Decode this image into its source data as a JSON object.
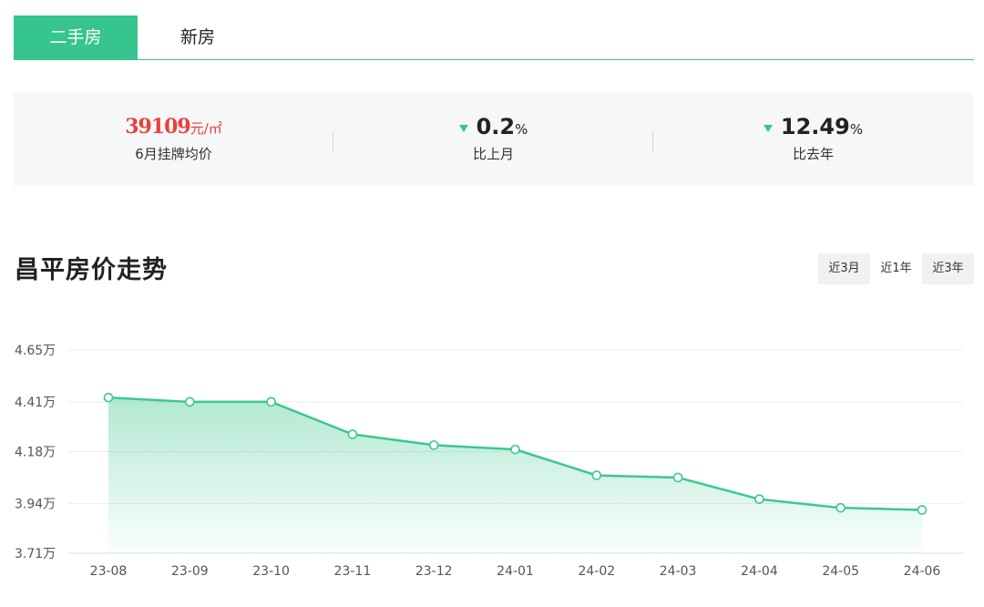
{
  "tabs": [
    {
      "label": "二手房",
      "active": true
    },
    {
      "label": "新房",
      "active": false
    }
  ],
  "stats": {
    "price": {
      "value": "39109",
      "unit": "元/㎡",
      "label": "6月挂牌均价"
    },
    "mom": {
      "value": "0.2",
      "unit": "%",
      "direction": "down",
      "label": "比上月"
    },
    "yoy": {
      "value": "12.49",
      "unit": "%",
      "direction": "down",
      "label": "比去年"
    }
  },
  "section": {
    "title": "昌平房价走势"
  },
  "range_buttons": [
    {
      "label": "近3月",
      "selected": false
    },
    {
      "label": "近1年",
      "selected": true
    },
    {
      "label": "近3年",
      "selected": false
    }
  ],
  "colors": {
    "accent": "#36c48f",
    "price": "#e8423a",
    "line": "#3cc88f"
  },
  "chart_data": {
    "type": "area",
    "categories": [
      "23-08",
      "23-09",
      "23-10",
      "23-11",
      "23-12",
      "24-01",
      "24-02",
      "24-03",
      "24-04",
      "24-05",
      "24-06"
    ],
    "series": [
      {
        "values": [
          4.43,
          4.41,
          4.41,
          4.26,
          4.21,
          4.19,
          4.07,
          4.06,
          3.96,
          3.92,
          3.91
        ]
      }
    ],
    "yticks": [
      {
        "value": 3.71,
        "label": "3.71万"
      },
      {
        "value": 3.94,
        "label": "3.94万"
      },
      {
        "value": 4.18,
        "label": "4.18万"
      },
      {
        "value": 4.41,
        "label": "4.41万"
      },
      {
        "value": 4.65,
        "label": "4.65万"
      }
    ],
    "ylim": [
      3.71,
      4.65
    ],
    "grid": true,
    "title": "",
    "xlabel": "",
    "ylabel": ""
  }
}
